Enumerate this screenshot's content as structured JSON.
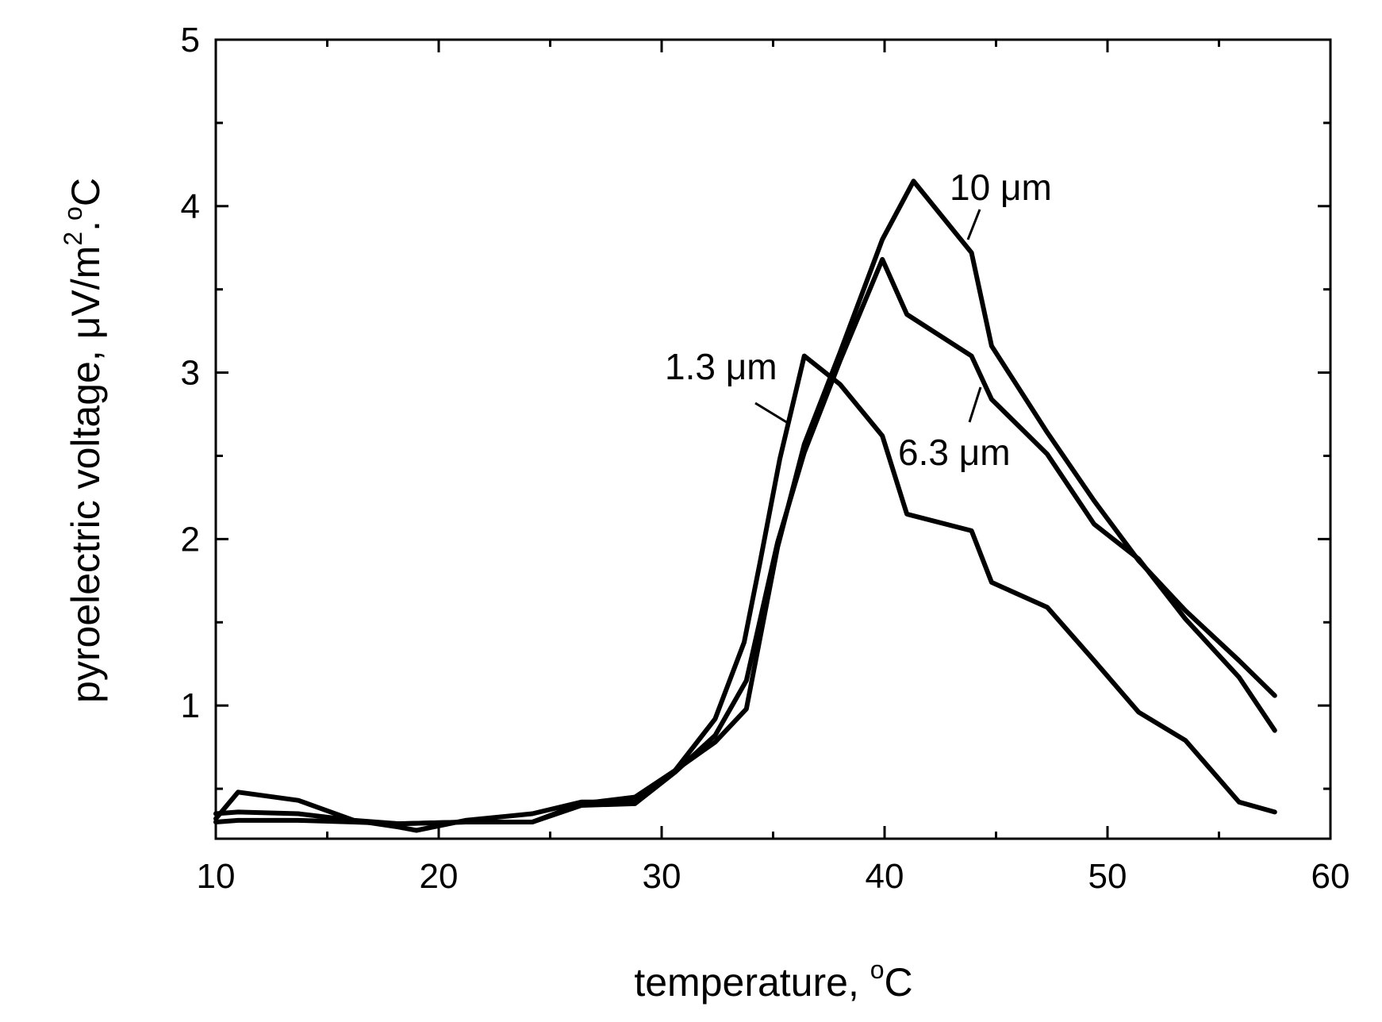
{
  "chart_data": {
    "type": "line",
    "title": "",
    "xlabel": "temperature, ",
    "xlabel_unit": "C",
    "xlabel_sup": "o",
    "ylabel_prefix": "pyroelectric voltage, ",
    "ylabel_mid": "V/m",
    "ylabel_sup1": "2",
    "ylabel_dot": ".",
    "ylabel_sup2": "o",
    "ylabel_unit": "C",
    "ylabel_mu": "μ",
    "xlim": [
      10,
      60
    ],
    "ylim": [
      0.2,
      5
    ],
    "x_ticks": [
      10,
      20,
      30,
      40,
      50,
      60
    ],
    "x_tick_labels": [
      "10",
      "20",
      "30",
      "40",
      "50",
      "60"
    ],
    "x_minor_ticks": [
      15,
      25,
      35,
      45,
      55
    ],
    "y_ticks": [
      1,
      2,
      3,
      4,
      5
    ],
    "y_tick_labels": [
      "1",
      "2",
      "3",
      "4",
      "5"
    ],
    "y_minor_ticks": [
      0.5,
      1.5,
      2.5,
      3.5,
      4.5
    ],
    "grid": false,
    "legend": "none",
    "series": [
      {
        "name": "1.3 μm",
        "x": [
          10,
          11,
          13.7,
          16.2,
          18.2,
          19.0,
          21.2,
          24.2,
          26.4,
          28.8,
          30.6,
          32.4,
          33.7,
          34.4,
          35.3,
          36.4,
          38.0,
          39.9,
          41.0,
          43.9,
          44.8,
          47.3,
          49.4,
          51.4,
          53.5,
          55.9,
          57.5
        ],
        "y": [
          0.32,
          0.48,
          0.43,
          0.31,
          0.27,
          0.25,
          0.31,
          0.35,
          0.42,
          0.42,
          0.61,
          0.92,
          1.38,
          1.85,
          2.48,
          3.1,
          2.93,
          2.62,
          2.15,
          2.05,
          1.74,
          1.59,
          1.27,
          0.96,
          0.79,
          0.42,
          0.36
        ]
      },
      {
        "name": "6.3 μm",
        "x": [
          10,
          11,
          13.7,
          16.2,
          18.2,
          21.2,
          24.2,
          26.4,
          28.8,
          30.6,
          32.4,
          33.8,
          35.2,
          36.4,
          38.0,
          39.9,
          41.0,
          43.9,
          44.8,
          47.3,
          49.4,
          51.4,
          53.5,
          55.9,
          57.5
        ],
        "y": [
          0.35,
          0.36,
          0.35,
          0.31,
          0.29,
          0.3,
          0.3,
          0.4,
          0.41,
          0.6,
          0.82,
          1.15,
          1.98,
          2.52,
          3.07,
          3.68,
          3.35,
          3.1,
          2.84,
          2.51,
          2.09,
          1.88,
          1.52,
          1.17,
          0.85
        ]
      },
      {
        "name": "10 μm",
        "x": [
          10,
          11,
          13.7,
          16.2,
          18.2,
          21.2,
          24.2,
          26.4,
          28.8,
          30.6,
          32.4,
          33.8,
          35.2,
          36.4,
          38.0,
          39.9,
          41.3,
          43.9,
          44.8,
          47.3,
          49.4,
          51.4,
          53.5,
          55.9,
          57.5
        ],
        "y": [
          0.3,
          0.31,
          0.31,
          0.3,
          0.29,
          0.3,
          0.3,
          0.41,
          0.45,
          0.61,
          0.78,
          0.98,
          1.95,
          2.57,
          3.12,
          3.8,
          4.15,
          3.72,
          3.16,
          2.64,
          2.23,
          1.87,
          1.57,
          1.27,
          1.06
        ]
      }
    ],
    "annotations": [
      {
        "text": "1.3 μm",
        "series": "1.3 μm"
      },
      {
        "text": "6.3 μm",
        "series": "6.3 μm"
      },
      {
        "text": "10 μm",
        "series": "10 μm"
      }
    ]
  }
}
